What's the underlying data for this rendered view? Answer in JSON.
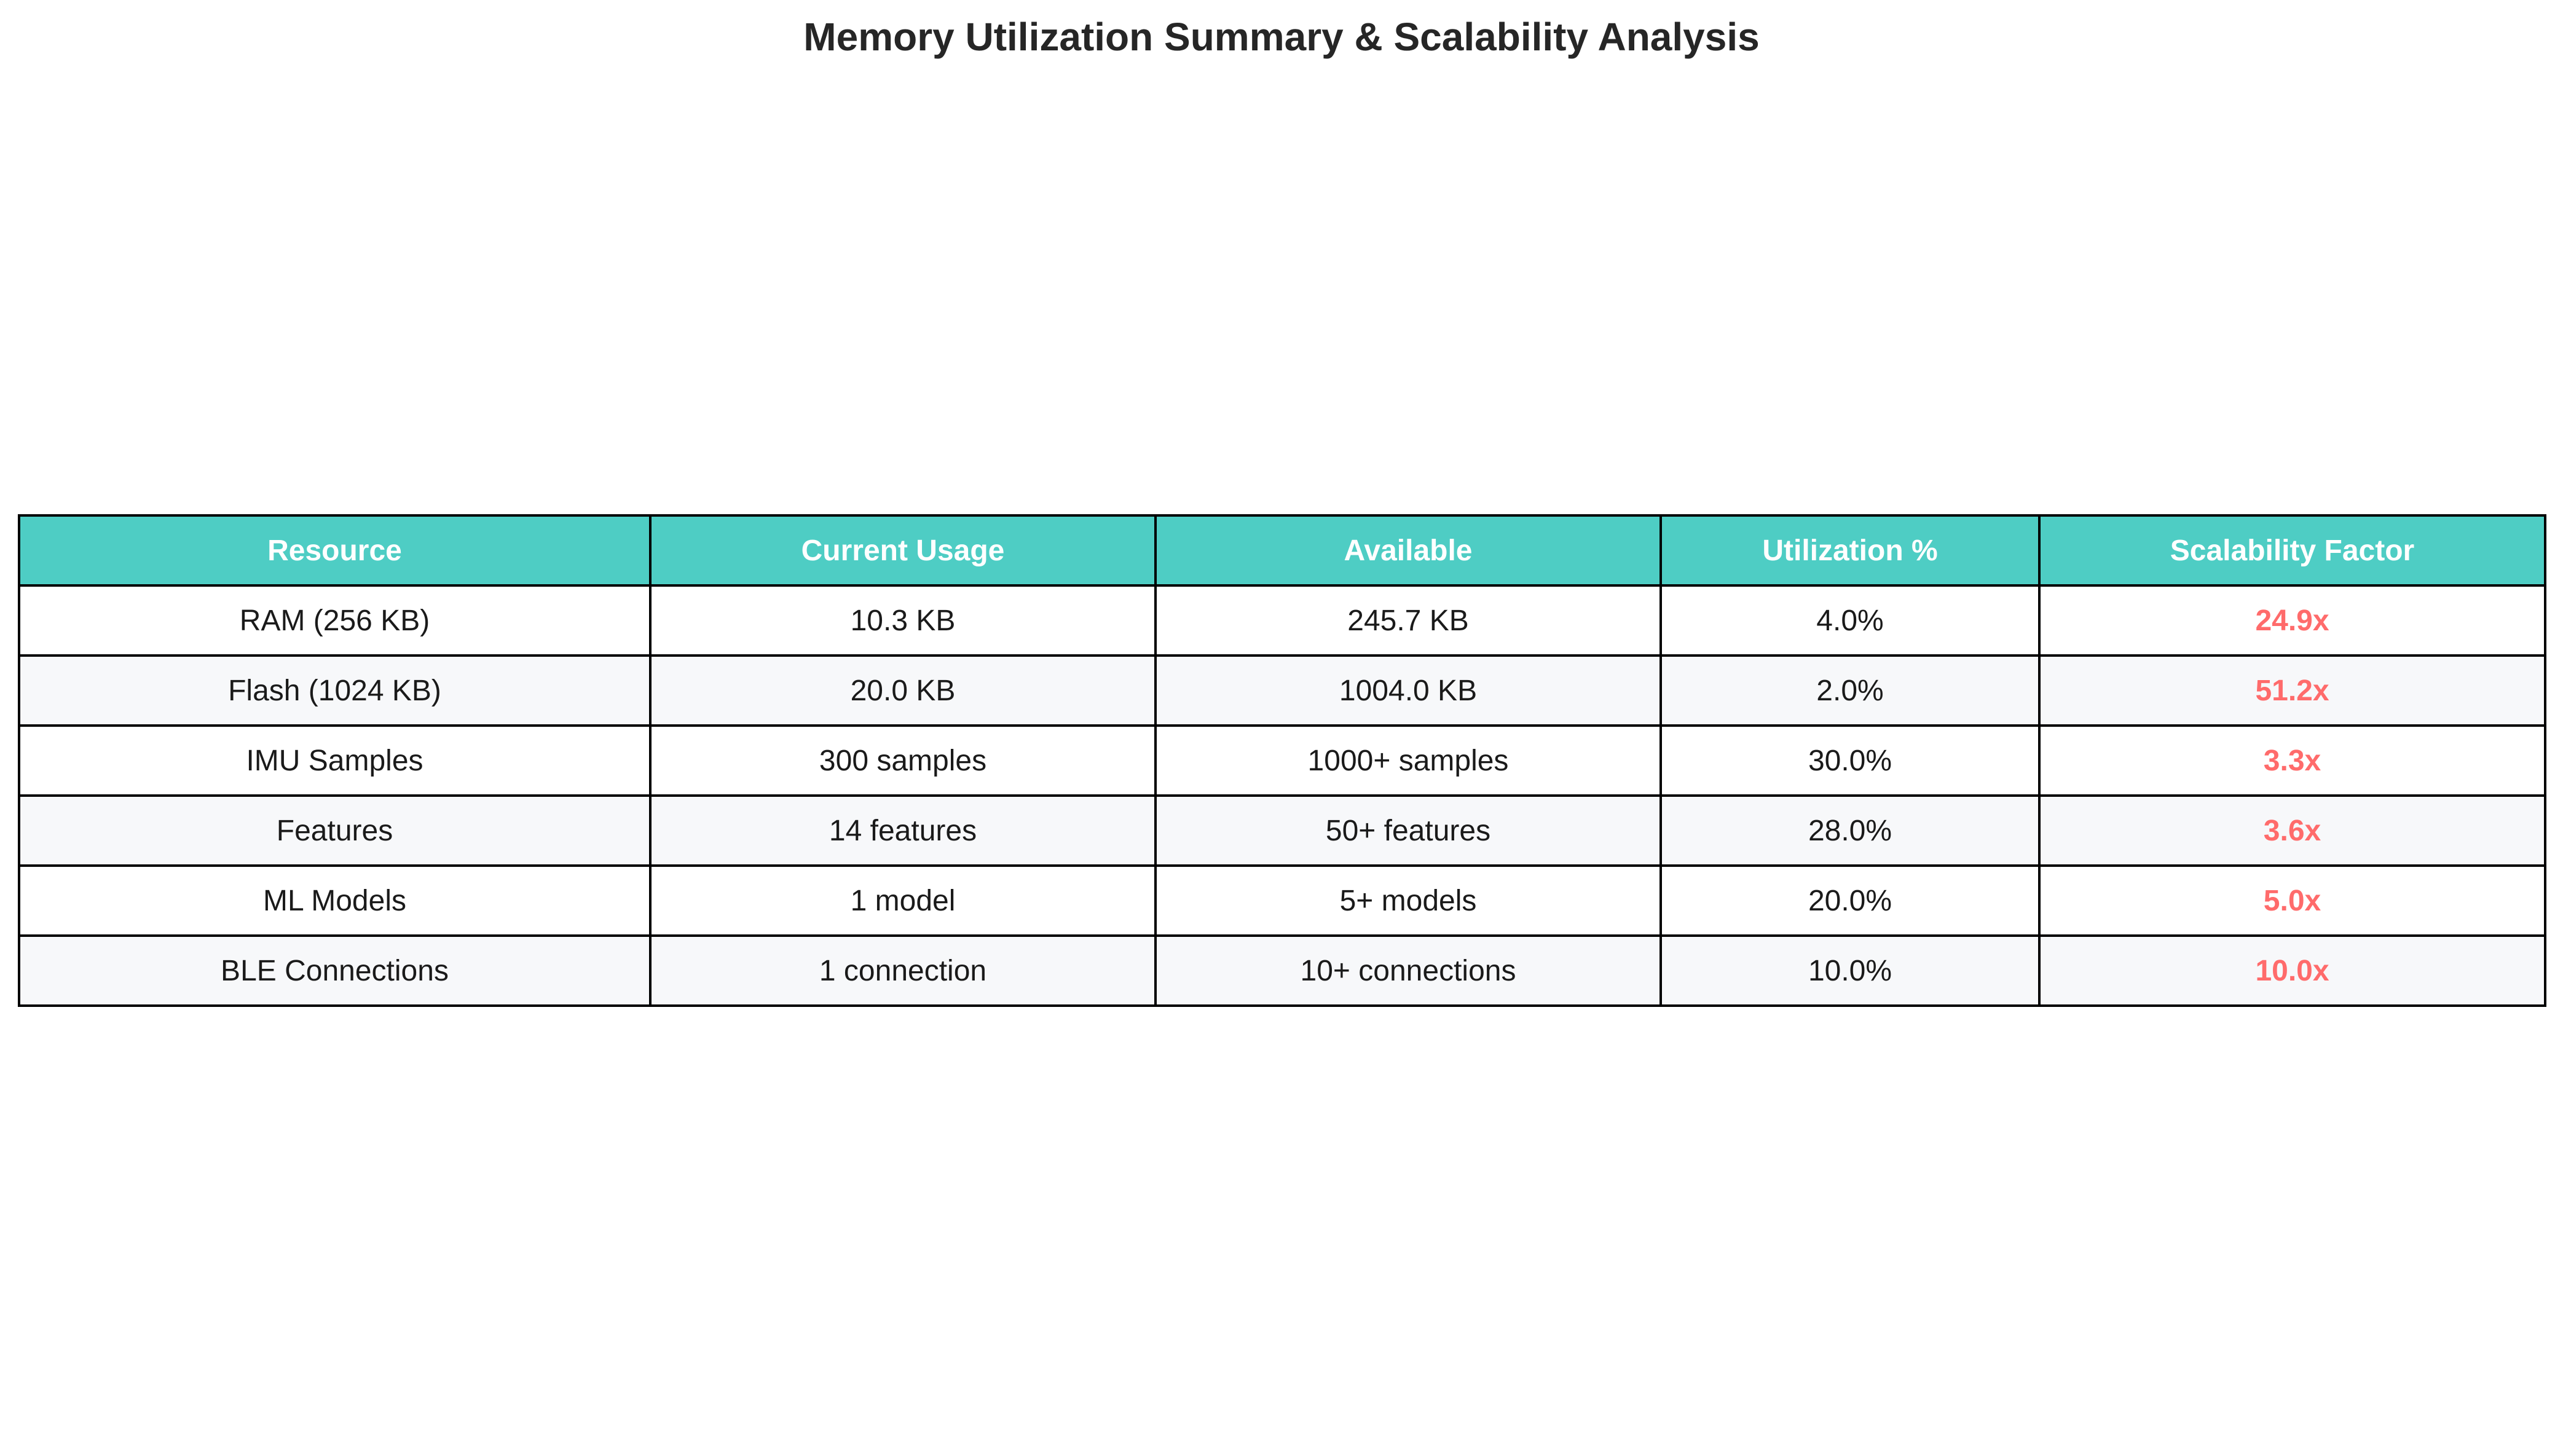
{
  "title": "Memory Utilization Summary & Scalability Analysis",
  "colors": {
    "header_bg": "#4ecdc4",
    "header_text": "#ffffff",
    "row_odd_bg": "#ffffff",
    "row_even_bg": "#f7f8fa",
    "factor_text": "#ff6b6b",
    "border": "#000000"
  },
  "chart_data": {
    "type": "table",
    "title": "Memory Utilization Summary & Scalability Analysis",
    "columns": [
      "Resource",
      "Current Usage",
      "Available",
      "Utilization %",
      "Scalability Factor"
    ],
    "rows": [
      [
        "RAM (256 KB)",
        "10.3 KB",
        "245.7 KB",
        "4.0%",
        "24.9x"
      ],
      [
        "Flash (1024 KB)",
        "20.0 KB",
        "1004.0 KB",
        "2.0%",
        "51.2x"
      ],
      [
        "IMU Samples",
        "300 samples",
        "1000+ samples",
        "30.0%",
        "3.3x"
      ],
      [
        "Features",
        "14 features",
        "50+ features",
        "28.0%",
        "3.6x"
      ],
      [
        "ML Models",
        "1 model",
        "5+ models",
        "20.0%",
        "5.0x"
      ],
      [
        "BLE Connections",
        "1 connection",
        "10+ connections",
        "10.0%",
        "10.0x"
      ]
    ]
  }
}
